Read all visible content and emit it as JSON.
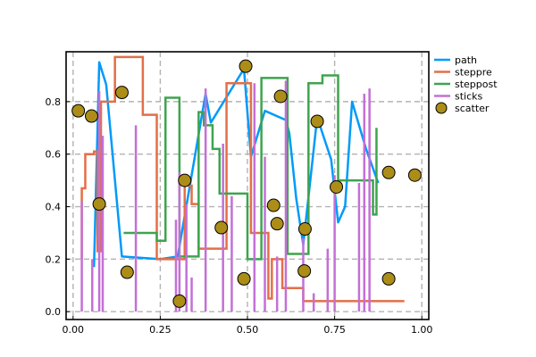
{
  "chart_data": {
    "type": "line",
    "title": "",
    "xlabel": "",
    "ylabel": "",
    "xlim": [
      -0.02,
      1.02
    ],
    "ylim": [
      -0.03,
      0.99
    ],
    "grid": true,
    "grid_style": "dashed",
    "legend_placement": "outer-right-top",
    "x_ticks": [
      0.0,
      0.25,
      0.5,
      0.75,
      1.0
    ],
    "x_tick_labels": [
      "0.00",
      "0.25",
      "0.50",
      "0.75",
      "1.00"
    ],
    "y_ticks": [
      0.0,
      0.2,
      0.4,
      0.6,
      0.8
    ],
    "y_tick_labels": [
      "0.0",
      "0.2",
      "0.4",
      "0.6",
      "0.8"
    ],
    "series": [
      {
        "name": "path",
        "kind": "line",
        "color": "#009AFA",
        "x": [
          0.06,
          0.075,
          0.095,
          0.14,
          0.25,
          0.3,
          0.38,
          0.395,
          0.49,
          0.51,
          0.55,
          0.61,
          0.62,
          0.64,
          0.66,
          0.7,
          0.74,
          0.76,
          0.78,
          0.8,
          0.84,
          0.875
        ],
        "y": [
          0.17,
          0.95,
          0.865,
          0.21,
          0.2,
          0.21,
          0.83,
          0.72,
          0.925,
          0.59,
          0.765,
          0.73,
          0.68,
          0.43,
          0.255,
          0.74,
          0.58,
          0.34,
          0.4,
          0.8,
          0.62,
          0.49
        ]
      },
      {
        "name": "steppre",
        "kind": "steppre",
        "color": "#E36F47",
        "x": [
          0.025,
          0.035,
          0.06,
          0.07,
          0.08,
          0.12,
          0.2,
          0.24,
          0.32,
          0.34,
          0.36,
          0.44,
          0.51,
          0.56,
          0.57,
          0.6,
          0.62,
          0.66,
          0.76,
          0.95
        ],
        "y": [
          0.2,
          0.47,
          0.6,
          0.61,
          0.23,
          0.8,
          0.97,
          0.75,
          0.2,
          0.48,
          0.41,
          0.24,
          0.87,
          0.3,
          0.05,
          0.2,
          0.09,
          0.09,
          0.04,
          0.04
        ]
      },
      {
        "name": "steppost",
        "kind": "steppost",
        "color": "#3EA44E",
        "x": [
          0.145,
          0.24,
          0.265,
          0.305,
          0.36,
          0.375,
          0.4,
          0.42,
          0.5,
          0.54,
          0.615,
          0.675,
          0.715,
          0.76,
          0.79,
          0.86,
          0.87
        ],
        "y": [
          0.3,
          0.27,
          0.815,
          0.21,
          0.76,
          0.71,
          0.62,
          0.45,
          0.2,
          0.89,
          0.22,
          0.87,
          0.9,
          0.5,
          0.5,
          0.37,
          0.7
        ]
      },
      {
        "name": "sticks",
        "kind": "sticks",
        "color": "#C370D6",
        "x": [
          0.025,
          0.055,
          0.075,
          0.085,
          0.18,
          0.295,
          0.305,
          0.325,
          0.34,
          0.38,
          0.43,
          0.455,
          0.52,
          0.55,
          0.585,
          0.61,
          0.66,
          0.69,
          0.73,
          0.75,
          0.82,
          0.835,
          0.85
        ],
        "y": [
          0.42,
          0.2,
          0.84,
          0.67,
          0.71,
          0.35,
          0.53,
          0.41,
          0.13,
          0.85,
          0.64,
          0.44,
          0.87,
          0.59,
          0.21,
          0.88,
          0.28,
          0.07,
          0.24,
          0.52,
          0.49,
          0.83,
          0.85
        ]
      },
      {
        "name": "scatter",
        "kind": "scatter",
        "color": "#AC8D18",
        "x": [
          0.015,
          0.053,
          0.075,
          0.14,
          0.155,
          0.305,
          0.32,
          0.425,
          0.49,
          0.495,
          0.575,
          0.585,
          0.595,
          0.663,
          0.665,
          0.7,
          0.755,
          0.905,
          0.905,
          0.98
        ],
        "y": [
          0.765,
          0.745,
          0.41,
          0.835,
          0.15,
          0.04,
          0.5,
          0.32,
          0.125,
          0.935,
          0.405,
          0.335,
          0.82,
          0.155,
          0.315,
          0.725,
          0.475,
          0.125,
          0.53,
          0.52
        ]
      }
    ]
  }
}
